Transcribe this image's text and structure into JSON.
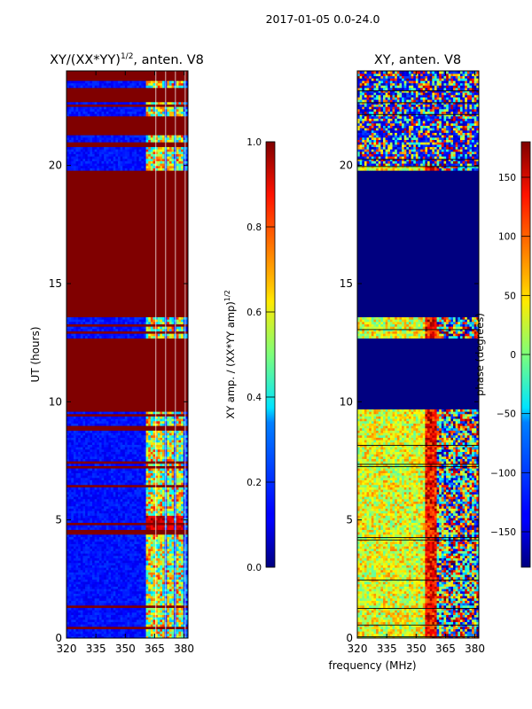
{
  "figure_title": "2017-01-05 0.0-24.0",
  "shared_xlabel": "frequency (MHz)",
  "colors": {
    "jet_low": "#00007f",
    "jet_high": "#7f0000",
    "frame": "#000000",
    "band_line": "#ffffff"
  },
  "chart_data": [
    {
      "type": "heatmap",
      "panel": "left",
      "title": "XY/(XX*YY)^{1/2}, anten. V8",
      "title_text": "XY/(XX*YY)",
      "title_sup": "1/2",
      "title_suffix": ", anten. V8",
      "xlabel": "",
      "ylabel": "UT (hours)",
      "xlim": [
        320,
        382
      ],
      "ylim": [
        0,
        24
      ],
      "xticks": [
        320,
        335,
        350,
        365,
        380
      ],
      "yticks": [
        0,
        5,
        10,
        15,
        20
      ],
      "colorbar": {
        "label": "XY amp. / (XX*YY amp)^{1/2}",
        "label_text": "XY amp. / (XX*YY amp)",
        "label_sup": "1/2",
        "range": [
          0.0,
          1.0
        ],
        "ticks": [
          "0.0",
          "0.2",
          "0.4",
          "0.6",
          "0.8",
          "1.0"
        ]
      },
      "flagged_hours": [
        [
          9.7,
          12.7
        ],
        [
          13.6,
          19.8
        ],
        [
          20.8,
          21.0
        ],
        [
          21.3,
          22.0
        ],
        [
          22.8,
          23.3
        ],
        [
          23.6,
          24.0
        ]
      ],
      "bright_channels_mhz": [
        363,
        368,
        373,
        378
      ],
      "hot_block_hours": [
        4.6,
        5.2
      ]
    },
    {
      "type": "heatmap",
      "panel": "right",
      "title": "XY, anten. V8",
      "xlabel": "frequency (MHz)",
      "ylabel": "",
      "xlim": [
        320,
        382
      ],
      "ylim": [
        0,
        24
      ],
      "xticks": [
        320,
        335,
        350,
        365,
        380
      ],
      "yticks": [
        0,
        5,
        10,
        15,
        20
      ],
      "colorbar": {
        "label": "phase (degrees)",
        "range": [
          -180,
          180
        ],
        "ticks": [
          "−150",
          "−100",
          "−50",
          "0",
          "50",
          "100",
          "150"
        ]
      },
      "flagged_hours": [
        [
          9.7,
          12.7
        ],
        [
          13.6,
          19.8
        ]
      ],
      "phase_transition_mhz": 357
    }
  ]
}
